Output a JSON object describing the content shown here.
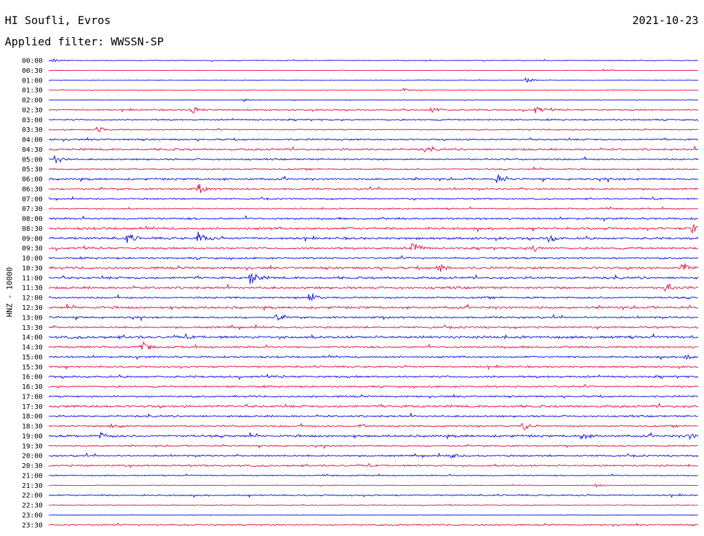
{
  "header": {
    "station": "HI Soufli, Evros",
    "date": "2021-10-23",
    "filter": "Applied filter: WWSSN-SP"
  },
  "chart_data": {
    "type": "line",
    "ylabel": "HNZ - 10000",
    "colors": {
      "even_row": "#0000e6",
      "odd_row": "#e6003a"
    },
    "row_labels": [
      "00:00",
      "00:30",
      "01:00",
      "01:30",
      "02:00",
      "02:30",
      "03:00",
      "03:30",
      "04:00",
      "04:30",
      "05:00",
      "05:30",
      "06:00",
      "06:30",
      "07:00",
      "07:30",
      "08:00",
      "08:30",
      "09:00",
      "09:30",
      "10:00",
      "10:30",
      "11:00",
      "11:30",
      "12:00",
      "12:30",
      "13:00",
      "13:30",
      "14:00",
      "14:30",
      "15:00",
      "15:30",
      "16:00",
      "16:30",
      "17:00",
      "17:30",
      "18:00",
      "18:30",
      "19:00",
      "19:30",
      "20:00",
      "20:30",
      "21:00",
      "21:30",
      "22:00",
      "22:30",
      "23:00",
      "23:30"
    ],
    "noise_level": [
      0.5,
      0.3,
      0.4,
      0.4,
      0.4,
      1.0,
      1.0,
      0.8,
      1.2,
      1.4,
      1.2,
      1.0,
      1.4,
      1.2,
      1.0,
      1.0,
      1.4,
      1.6,
      1.6,
      1.4,
      1.3,
      1.6,
      1.6,
      1.6,
      1.3,
      1.6,
      1.3,
      1.3,
      1.8,
      1.3,
      1.3,
      1.2,
      1.4,
      1.2,
      1.2,
      1.6,
      1.3,
      1.2,
      1.6,
      1.0,
      1.2,
      1.2,
      0.8,
      0.6,
      1.0,
      0.5,
      0.4,
      1.0
    ],
    "events": [
      {
        "row": 0,
        "t": 0.005,
        "a": 3
      },
      {
        "row": 1,
        "t": 0.855,
        "a": 3
      },
      {
        "row": 2,
        "t": 0.735,
        "a": 4
      },
      {
        "row": 3,
        "t": 0.545,
        "a": 3
      },
      {
        "row": 4,
        "t": 0.3,
        "a": 2
      },
      {
        "row": 5,
        "t": 0.22,
        "a": 6
      },
      {
        "row": 5,
        "t": 0.59,
        "a": 5
      },
      {
        "row": 5,
        "t": 0.75,
        "a": 6
      },
      {
        "row": 7,
        "t": 0.075,
        "a": 6
      },
      {
        "row": 9,
        "t": 0.58,
        "a": 3
      },
      {
        "row": 10,
        "t": 0.01,
        "a": 7
      },
      {
        "row": 12,
        "t": 0.69,
        "a": 7
      },
      {
        "row": 13,
        "t": 0.23,
        "a": 8
      },
      {
        "row": 17,
        "t": 0.99,
        "a": 7
      },
      {
        "row": 18,
        "t": 0.12,
        "a": 8
      },
      {
        "row": 18,
        "t": 0.23,
        "a": 9
      },
      {
        "row": 18,
        "t": 0.77,
        "a": 6
      },
      {
        "row": 19,
        "t": 0.56,
        "a": 11
      },
      {
        "row": 19,
        "t": 0.745,
        "a": 6
      },
      {
        "row": 21,
        "t": 0.6,
        "a": 7
      },
      {
        "row": 21,
        "t": 0.975,
        "a": 9
      },
      {
        "row": 22,
        "t": 0.31,
        "a": 12
      },
      {
        "row": 23,
        "t": 0.95,
        "a": 7
      },
      {
        "row": 24,
        "t": 0.4,
        "a": 10
      },
      {
        "row": 26,
        "t": 0.35,
        "a": 5
      },
      {
        "row": 29,
        "t": 0.145,
        "a": 6
      },
      {
        "row": 30,
        "t": 0.98,
        "a": 5
      },
      {
        "row": 37,
        "t": 0.095,
        "a": 7
      },
      {
        "row": 37,
        "t": 0.48,
        "a": 5
      },
      {
        "row": 37,
        "t": 0.73,
        "a": 7
      },
      {
        "row": 38,
        "t": 0.08,
        "a": 4
      },
      {
        "row": 38,
        "t": 0.82,
        "a": 5
      },
      {
        "row": 38,
        "t": 0.985,
        "a": 4
      },
      {
        "row": 40,
        "t": 0.62,
        "a": 3
      },
      {
        "row": 43,
        "t": 0.84,
        "a": 3
      }
    ]
  }
}
